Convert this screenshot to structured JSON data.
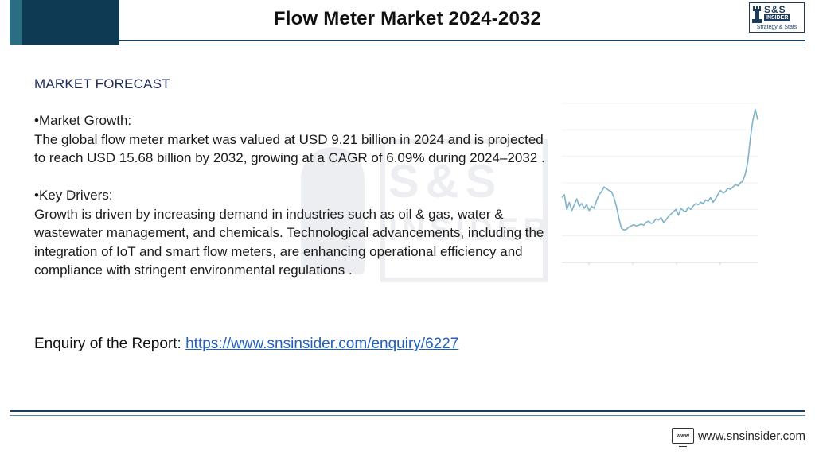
{
  "header": {
    "title": "Flow Meter Market 2024-2032",
    "logo": {
      "mark": "S&S",
      "sub": "INSIDER",
      "tagline": "Strategy & Stats",
      "icon": "chess-rook-icon"
    }
  },
  "watermark": {
    "text": "S&S",
    "sub": "INSIDER"
  },
  "content": {
    "heading": "MARKET FORECAST",
    "growth_title": "•Market Growth:",
    "growth_text": "The global flow meter market was valued at USD 9.21 billion in 2024 and is projected to reach USD 15.68 billion by 2032, growing at a CAGR of 6.09% during 2024–2032 .",
    "drivers_title": "•Key Drivers:",
    "drivers_text": "Growth is driven by increasing demand in industries such as oil & gas, water & wastewater management, and chemicals. Technological advancements, including the integration of IoT and smart flow meters, are enhancing operational efficiency and compliance with stringent environmental regulations ."
  },
  "enquiry": {
    "label": "Enquiry of the Report: ",
    "link": "https://www.snsinsider.com/enquiry/6227"
  },
  "chart_data": {
    "type": "line",
    "x": [
      0,
      1,
      2,
      3,
      4,
      5,
      6,
      7,
      8,
      9,
      10,
      11,
      12,
      13,
      14,
      15,
      16,
      17,
      18,
      19,
      20,
      21,
      22,
      23,
      24,
      25,
      26,
      27,
      28,
      29,
      30,
      31,
      32,
      33,
      34,
      35,
      36,
      37,
      38,
      39,
      40,
      41,
      42,
      43,
      44,
      45,
      46,
      47,
      48,
      49,
      50,
      51,
      52,
      53,
      54,
      55,
      56,
      57,
      58,
      59,
      60,
      61,
      62,
      63,
      64,
      65,
      66,
      67,
      68,
      69,
      70,
      71,
      72,
      73,
      74,
      75,
      76,
      77,
      78,
      79
    ],
    "values": [
      50,
      55,
      30,
      42,
      28,
      38,
      48,
      35,
      40,
      32,
      38,
      28,
      35,
      32,
      45,
      55,
      60,
      68,
      65,
      62,
      60,
      50,
      35,
      15,
      -2,
      -5,
      -4,
      0,
      2,
      4,
      2,
      3,
      5,
      3,
      8,
      10,
      6,
      8,
      14,
      12,
      16,
      8,
      12,
      18,
      22,
      26,
      30,
      20,
      32,
      28,
      26,
      34,
      30,
      36,
      40,
      38,
      42,
      40,
      46,
      44,
      50,
      42,
      48,
      56,
      62,
      58,
      60,
      66,
      64,
      68,
      72,
      70,
      75,
      78,
      90,
      110,
      150,
      180,
      200,
      182
    ],
    "ylim": [
      -60,
      210
    ],
    "grid": true,
    "line_color": "#7fb3c8"
  },
  "footer": {
    "site": "www.snsinsider.com",
    "icon_label": "www"
  },
  "colors": {
    "navy": "#0f3a53",
    "heading": "#1c2b5a",
    "link": "#1f5fbf"
  }
}
